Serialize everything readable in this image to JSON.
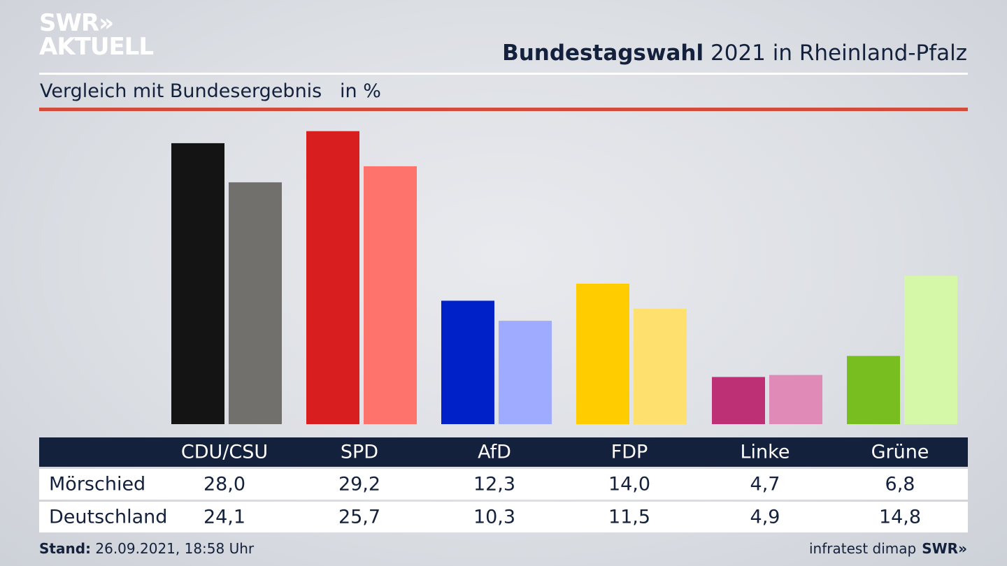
{
  "logo": {
    "line1": "SWR»",
    "line2": "AKTUELL"
  },
  "header": {
    "title_bold": "Bundestagswahl",
    "title_rest": "2021 in Rheinland-Pfalz",
    "subtitle": "Vergleich mit Bundesergebnis   in %"
  },
  "chart_data": {
    "type": "bar",
    "title": "Bundestagswahl 2021 in Rheinland-Pfalz",
    "subtitle": "Vergleich mit Bundesergebnis in %",
    "categories": [
      "CDU/CSU",
      "SPD",
      "AfD",
      "FDP",
      "Linke",
      "Grüne"
    ],
    "series": [
      {
        "name": "Mörschied",
        "values": [
          28.0,
          29.2,
          12.3,
          14.0,
          4.7,
          6.8
        ],
        "labels": [
          "28,0",
          "29,2",
          "12,3",
          "14,0",
          "4,7",
          "6,8"
        ],
        "colors": [
          "#141414",
          "#d81e1e",
          "#0021c8",
          "#ffcc00",
          "#bd3075",
          "#78be20"
        ]
      },
      {
        "name": "Deutschland",
        "values": [
          24.1,
          25.7,
          10.3,
          11.5,
          4.9,
          14.8
        ],
        "labels": [
          "24,1",
          "25,7",
          "10,3",
          "11,5",
          "4,9",
          "14,8"
        ],
        "colors": [
          "#72706c",
          "#ff736d",
          "#9eabff",
          "#fde06e",
          "#e08ab8",
          "#d4f7a8"
        ]
      }
    ],
    "ylim": [
      0,
      30
    ],
    "grid": false
  },
  "footer": {
    "stand_label": "Stand:",
    "stand_value": "26.09.2021, 18:58 Uhr",
    "source": "infratest dimap",
    "brand": "SWR»"
  }
}
